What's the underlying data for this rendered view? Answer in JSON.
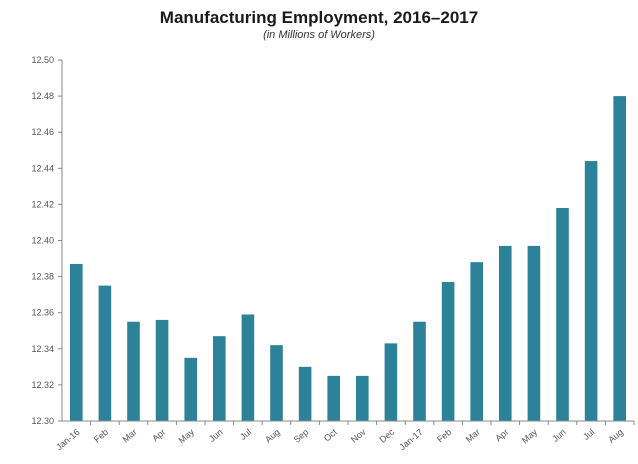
{
  "chart_data": {
    "type": "bar",
    "title": "Manufacturing Employment, 2016–2017",
    "subtitle": "(in Millions of Workers)",
    "categories": [
      "Jan-16",
      "Feb",
      "Mar",
      "Apr",
      "May",
      "Jun",
      "Jul",
      "Aug",
      "Sep",
      "Oct",
      "Nov",
      "Dec",
      "Jan-17",
      "Feb",
      "Mar",
      "Apr",
      "May",
      "Jun",
      "Jul",
      "Aug"
    ],
    "values": [
      12.387,
      12.375,
      12.355,
      12.356,
      12.335,
      12.347,
      12.359,
      12.342,
      12.33,
      12.325,
      12.325,
      12.343,
      12.355,
      12.377,
      12.388,
      12.397,
      12.397,
      12.418,
      12.444,
      12.48
    ],
    "ylim": [
      12.3,
      12.5
    ],
    "yticks": [
      "12.30",
      "12.32",
      "12.34",
      "12.36",
      "12.38",
      "12.40",
      "12.42",
      "12.44",
      "12.46",
      "12.48",
      "12.50"
    ],
    "xlabel": "",
    "ylabel": "",
    "grid": false,
    "bar_color": "#2b8299"
  }
}
